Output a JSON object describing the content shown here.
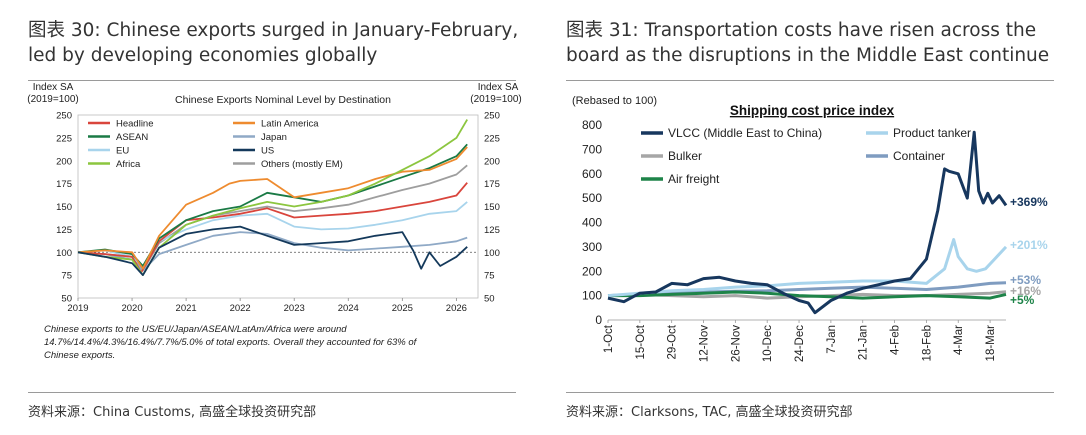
{
  "left_panel": {
    "figure_title": "图表 30: Chinese exports surged in January-February, led by developing economies globally",
    "source": "资料来源：China Customs, 高盛全球投资研究部"
  },
  "right_panel": {
    "figure_title": "图表 31: Transportation costs have risen across the board as the disruptions in the Middle East continue",
    "source": "资料来源：Clarksons, TAC, 高盛全球投资研究部"
  },
  "chart_data": [
    {
      "type": "line",
      "title": "Chinese Exports Nominal Level by Destination",
      "ylabel_left": "Index SA (2019=100)",
      "ylabel_right": "Index SA (2019=100)",
      "ylim": [
        50,
        250
      ],
      "yticks": [
        50,
        75,
        100,
        125,
        150,
        175,
        200,
        225,
        250
      ],
      "xlim": [
        2019,
        2026.4
      ],
      "xticks": [
        "2019",
        "2020",
        "2021",
        "2022",
        "2023",
        "2024",
        "2025",
        "2026"
      ],
      "reference_line": 100,
      "footnote": "Chinese exports to the US/EU/Japan/ASEAN/LatAm/Africa were around 14.7%/14.4%/4.3%/16.4%/7.7%/5.0% of total exports. Overall they accounted for 63% of Chinese exports.",
      "series": [
        {
          "name": "Headline",
          "color": "#d9453c",
          "x": [
            2019,
            2019.5,
            2020.0,
            2020.17,
            2020.5,
            2021.0,
            2021.5,
            2022.0,
            2022.5,
            2023.0,
            2023.5,
            2024.0,
            2024.5,
            2025.0,
            2025.5,
            2026.0,
            2026.2
          ],
          "y": [
            100,
            98,
            95,
            78,
            112,
            135,
            138,
            142,
            148,
            138,
            140,
            142,
            145,
            150,
            155,
            162,
            176
          ]
        },
        {
          "name": "Latin America",
          "color": "#ee8b2f",
          "x": [
            2019,
            2019.5,
            2020.0,
            2020.2,
            2020.5,
            2021.0,
            2021.5,
            2021.8,
            2022.0,
            2022.5,
            2023.0,
            2023.5,
            2024.0,
            2024.5,
            2025.0,
            2025.5,
            2026.0,
            2026.2
          ],
          "y": [
            100,
            102,
            100,
            82,
            118,
            152,
            165,
            175,
            178,
            180,
            160,
            165,
            170,
            180,
            188,
            190,
            202,
            215
          ]
        },
        {
          "name": "ASEAN",
          "color": "#1a7a45",
          "x": [
            2019,
            2019.5,
            2020.0,
            2020.2,
            2020.5,
            2021.0,
            2021.5,
            2022.0,
            2022.5,
            2023.0,
            2023.5,
            2024.0,
            2024.5,
            2025.0,
            2025.5,
            2026.0,
            2026.2
          ],
          "y": [
            100,
            103,
            98,
            85,
            115,
            135,
            145,
            150,
            165,
            160,
            155,
            162,
            172,
            182,
            192,
            205,
            218
          ]
        },
        {
          "name": "Japan",
          "color": "#8fa9c6",
          "x": [
            2019,
            2019.5,
            2020.0,
            2020.2,
            2020.5,
            2021.0,
            2021.5,
            2022.0,
            2022.5,
            2023.0,
            2023.5,
            2024.0,
            2024.5,
            2025.0,
            2025.5,
            2026.0,
            2026.2
          ],
          "y": [
            100,
            98,
            92,
            80,
            98,
            108,
            118,
            122,
            120,
            110,
            105,
            102,
            104,
            106,
            108,
            112,
            116
          ]
        },
        {
          "name": "EU",
          "color": "#a8d4ec",
          "x": [
            2019,
            2019.5,
            2020.0,
            2020.2,
            2020.5,
            2021.0,
            2021.5,
            2022.0,
            2022.5,
            2023.0,
            2023.5,
            2024.0,
            2024.5,
            2025.0,
            2025.5,
            2026.0,
            2026.2
          ],
          "y": [
            100,
            102,
            95,
            85,
            112,
            125,
            135,
            140,
            142,
            128,
            125,
            126,
            130,
            135,
            142,
            145,
            155
          ]
        },
        {
          "name": "US",
          "color": "#14395b",
          "x": [
            2019,
            2019.5,
            2020.0,
            2020.2,
            2020.5,
            2021.0,
            2021.5,
            2022.0,
            2022.5,
            2023.0,
            2023.5,
            2024.0,
            2024.5,
            2025.0,
            2025.2,
            2025.35,
            2025.5,
            2025.7,
            2026.0,
            2026.2
          ],
          "y": [
            100,
            95,
            88,
            75,
            105,
            120,
            125,
            128,
            118,
            108,
            110,
            112,
            118,
            122,
            102,
            82,
            100,
            85,
            95,
            106
          ]
        },
        {
          "name": "Africa",
          "color": "#8cc63f",
          "x": [
            2019,
            2019.5,
            2020.0,
            2020.2,
            2020.5,
            2021.0,
            2021.5,
            2022.0,
            2022.5,
            2023.0,
            2023.5,
            2024.0,
            2024.5,
            2025.0,
            2025.5,
            2026.0,
            2026.2
          ],
          "y": [
            100,
            95,
            92,
            75,
            105,
            130,
            140,
            148,
            155,
            150,
            155,
            162,
            175,
            190,
            205,
            225,
            245
          ]
        },
        {
          "name": "Others (mostly EM)",
          "color": "#9e9e9e",
          "x": [
            2019,
            2019.5,
            2020.0,
            2020.2,
            2020.5,
            2021.0,
            2021.5,
            2022.0,
            2022.5,
            2023.0,
            2023.5,
            2024.0,
            2024.5,
            2025.0,
            2025.5,
            2026.0,
            2026.2
          ],
          "y": [
            100,
            98,
            95,
            80,
            110,
            130,
            140,
            145,
            150,
            145,
            148,
            152,
            160,
            168,
            175,
            185,
            195
          ]
        }
      ]
    },
    {
      "type": "line",
      "title": "Shipping cost price index",
      "ylabel": "(Rebased to 100)",
      "ylim": [
        0,
        800
      ],
      "yticks": [
        0,
        100,
        200,
        300,
        400,
        500,
        600,
        700,
        800
      ],
      "day_range": [
        0,
        175
      ],
      "xtick_days": [
        0,
        14,
        28,
        42,
        56,
        70,
        84,
        98,
        112,
        126,
        140,
        154,
        168
      ],
      "xticks": [
        "1-Oct",
        "15-Oct",
        "29-Oct",
        "12-Nov",
        "26-Nov",
        "10-Dec",
        "24-Dec",
        "7-Jan",
        "21-Jan",
        "4-Feb",
        "18-Feb",
        "4-Mar",
        "18-Mar"
      ],
      "series": [
        {
          "name": "VLCC (Middle East to China)",
          "color": "#17375e",
          "end_label": "+369%",
          "x": [
            0,
            7,
            14,
            21,
            28,
            35,
            42,
            49,
            56,
            63,
            70,
            77,
            84,
            88,
            91,
            98,
            105,
            112,
            119,
            126,
            133,
            140,
            145,
            148,
            150,
            154,
            158,
            161,
            163,
            165,
            167,
            169,
            172,
            175
          ],
          "y": [
            90,
            75,
            110,
            115,
            150,
            145,
            170,
            175,
            160,
            150,
            145,
            110,
            80,
            70,
            30,
            80,
            110,
            130,
            145,
            160,
            170,
            250,
            450,
            620,
            610,
            600,
            500,
            770,
            530,
            480,
            520,
            480,
            510,
            470
          ]
        },
        {
          "name": "Product tanker",
          "color": "#a8d4ec",
          "end_label": "+201%",
          "x": [
            0,
            14,
            28,
            42,
            56,
            70,
            84,
            98,
            112,
            126,
            140,
            148,
            152,
            154,
            158,
            162,
            166,
            170,
            175
          ],
          "y": [
            100,
            110,
            120,
            125,
            135,
            140,
            150,
            155,
            160,
            160,
            150,
            210,
            330,
            260,
            210,
            200,
            210,
            250,
            300
          ]
        },
        {
          "name": "Bulker",
          "color": "#a6a6a6",
          "end_label": "+16%",
          "x": [
            0,
            14,
            28,
            42,
            56,
            70,
            84,
            98,
            112,
            126,
            140,
            154,
            168,
            175
          ],
          "y": [
            100,
            105,
            100,
            95,
            100,
            90,
            95,
            100,
            105,
            100,
            100,
            105,
            110,
            116
          ]
        },
        {
          "name": "Container",
          "color": "#7f9cc0",
          "end_label": "+53%",
          "x": [
            0,
            14,
            28,
            42,
            56,
            70,
            84,
            98,
            112,
            126,
            140,
            154,
            168,
            175
          ],
          "y": [
            100,
            105,
            110,
            115,
            118,
            120,
            125,
            130,
            135,
            130,
            125,
            135,
            150,
            153
          ]
        },
        {
          "name": "Air freight",
          "color": "#1e8449",
          "end_label": "+5%",
          "x": [
            0,
            14,
            28,
            42,
            56,
            70,
            84,
            98,
            112,
            126,
            140,
            154,
            168,
            175
          ],
          "y": [
            100,
            100,
            105,
            110,
            115,
            110,
            100,
            95,
            90,
            95,
            100,
            95,
            90,
            105
          ]
        }
      ]
    }
  ]
}
